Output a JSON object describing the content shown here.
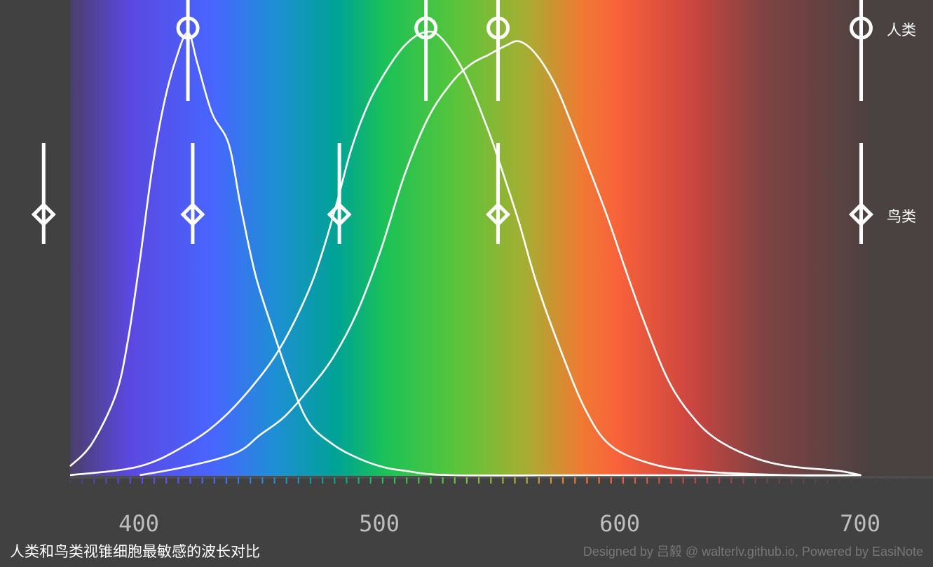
{
  "caption": "人类和鸟类视锥细胞最敏感的波长对比",
  "credit": "Designed by 吕毅 @ walterlv.github.io, Powered by EasiNote",
  "colors": {
    "background": "#414141",
    "curve": "#ffffff",
    "marker": "#ffffff",
    "spectrum_stops": [
      {
        "nm": 380,
        "color": "#4a3f6a"
      },
      {
        "nm": 405,
        "color": "#5b48e0"
      },
      {
        "nm": 440,
        "color": "#4766ff"
      },
      {
        "nm": 465,
        "color": "#1e8fd4"
      },
      {
        "nm": 490,
        "color": "#00a295"
      },
      {
        "nm": 510,
        "color": "#1bc257"
      },
      {
        "nm": 540,
        "color": "#5cc43a"
      },
      {
        "nm": 568,
        "color": "#a8ad32"
      },
      {
        "nm": 590,
        "color": "#ef7a33"
      },
      {
        "nm": 605,
        "color": "#f8623a"
      },
      {
        "nm": 635,
        "color": "#cc4540"
      },
      {
        "nm": 665,
        "color": "#7f4343"
      },
      {
        "nm": 710,
        "color": "#4a4141"
      }
    ]
  },
  "chart_data": {
    "type": "line",
    "title": "",
    "xlabel": "",
    "ylabel": "",
    "xlim": [
      381,
      734
    ],
    "ylim": [
      0,
      1
    ],
    "x_ticks": [
      {
        "value": 400,
        "label": "400"
      },
      {
        "value": 500,
        "label": "500"
      },
      {
        "value": 600,
        "label": "600"
      },
      {
        "value": 700,
        "label": "700"
      }
    ],
    "series": [
      {
        "points": [
          [
            381,
            0.02
          ],
          [
            390,
            0.07
          ],
          [
            400,
            0.18
          ],
          [
            405,
            0.3
          ],
          [
            410,
            0.48
          ],
          [
            415,
            0.68
          ],
          [
            420,
            0.83
          ],
          [
            425,
            0.93
          ],
          [
            430,
            0.99
          ],
          [
            434,
            0.92
          ],
          [
            440,
            0.81
          ],
          [
            447,
            0.74
          ],
          [
            452,
            0.6
          ],
          [
            458,
            0.45
          ],
          [
            465,
            0.33
          ],
          [
            472,
            0.22
          ],
          [
            480,
            0.12
          ],
          [
            490,
            0.07
          ],
          [
            500,
            0.04
          ],
          [
            510,
            0.02
          ],
          [
            520,
            0.01
          ],
          [
            540,
            0.0
          ],
          [
            600,
            0.0
          ],
          [
            710,
            0.0
          ]
        ]
      },
      {
        "points": [
          [
            381,
            0.0
          ],
          [
            410,
            0.02
          ],
          [
            430,
            0.07
          ],
          [
            445,
            0.13
          ],
          [
            460,
            0.22
          ],
          [
            470,
            0.3
          ],
          [
            480,
            0.41
          ],
          [
            486,
            0.5
          ],
          [
            492,
            0.61
          ],
          [
            498,
            0.73
          ],
          [
            505,
            0.83
          ],
          [
            512,
            0.9
          ],
          [
            520,
            0.96
          ],
          [
            528,
            0.99
          ],
          [
            535,
            0.98
          ],
          [
            545,
            0.9
          ],
          [
            555,
            0.77
          ],
          [
            562,
            0.66
          ],
          [
            568,
            0.56
          ],
          [
            575,
            0.43
          ],
          [
            585,
            0.28
          ],
          [
            595,
            0.15
          ],
          [
            605,
            0.07
          ],
          [
            620,
            0.03
          ],
          [
            640,
            0.01
          ],
          [
            680,
            0.0
          ],
          [
            710,
            0.0
          ]
        ]
      },
      {
        "points": [
          [
            410,
            0.0
          ],
          [
            430,
            0.02
          ],
          [
            450,
            0.05
          ],
          [
            460,
            0.09
          ],
          [
            470,
            0.13
          ],
          [
            480,
            0.19
          ],
          [
            490,
            0.26
          ],
          [
            500,
            0.36
          ],
          [
            510,
            0.5
          ],
          [
            520,
            0.67
          ],
          [
            530,
            0.8
          ],
          [
            540,
            0.88
          ],
          [
            548,
            0.92
          ],
          [
            555,
            0.94
          ],
          [
            562,
            0.96
          ],
          [
            568,
            0.97
          ],
          [
            575,
            0.94
          ],
          [
            583,
            0.87
          ],
          [
            590,
            0.78
          ],
          [
            598,
            0.67
          ],
          [
            605,
            0.57
          ],
          [
            612,
            0.46
          ],
          [
            620,
            0.34
          ],
          [
            630,
            0.21
          ],
          [
            640,
            0.13
          ],
          [
            650,
            0.08
          ],
          [
            665,
            0.04
          ],
          [
            680,
            0.02
          ],
          [
            700,
            0.01
          ],
          [
            710,
            0.0
          ]
        ]
      }
    ],
    "peak_markers": [
      {
        "row": "人类",
        "shape": "circle",
        "values": [
          430,
          529,
          559,
          710
        ]
      },
      {
        "row": "鸟类",
        "shape": "diamond",
        "values": [
          370,
          432,
          493,
          559,
          710
        ]
      }
    ]
  }
}
